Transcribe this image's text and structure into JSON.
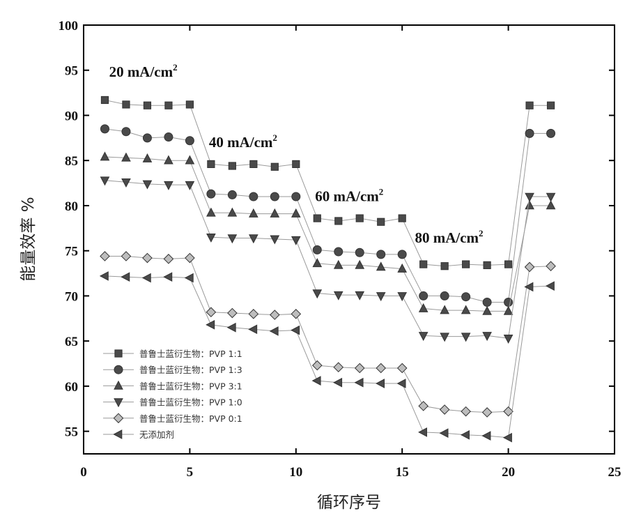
{
  "chart_data": {
    "type": "line",
    "xlabel": "循环序号",
    "ylabel": "能量效率 %",
    "xlim": [
      0,
      25
    ],
    "ylim": [
      52.5,
      100
    ],
    "xticks": [
      0,
      5,
      10,
      15,
      20,
      25
    ],
    "yticks": [
      55,
      60,
      65,
      70,
      75,
      80,
      85,
      90,
      95,
      100
    ],
    "legend_position": "bottom-left",
    "x": [
      1,
      2,
      3,
      4,
      5,
      6,
      7,
      8,
      9,
      10,
      11,
      12,
      13,
      14,
      15,
      16,
      17,
      18,
      19,
      20,
      21,
      22
    ],
    "series": [
      {
        "name": "普鲁士蓝衍生物：PVP 1:1",
        "marker": "square",
        "values": [
          91.7,
          91.2,
          91.1,
          91.1,
          91.2,
          84.6,
          84.4,
          84.6,
          84.3,
          84.6,
          78.6,
          78.3,
          78.6,
          78.2,
          78.6,
          73.5,
          73.3,
          73.5,
          73.4,
          73.5,
          91.1,
          91.1
        ]
      },
      {
        "name": "普鲁士蓝衍生物：PVP 1:3",
        "marker": "circle",
        "values": [
          88.5,
          88.2,
          87.5,
          87.6,
          87.2,
          81.3,
          81.2,
          81.0,
          81.0,
          81.0,
          75.1,
          74.9,
          74.8,
          74.6,
          74.6,
          70.0,
          70.0,
          69.9,
          69.3,
          69.3,
          88.0,
          88.0
        ]
      },
      {
        "name": "普鲁士蓝衍生物：PVP 3:1",
        "marker": "triangle-up",
        "values": [
          85.4,
          85.3,
          85.2,
          85.0,
          85.0,
          79.2,
          79.2,
          79.1,
          79.1,
          79.1,
          73.6,
          73.4,
          73.4,
          73.2,
          73.0,
          68.6,
          68.4,
          68.4,
          68.3,
          68.3,
          80.0,
          80.0
        ]
      },
      {
        "name": "普鲁士蓝衍生物：PVP 1:0",
        "marker": "triangle-down",
        "values": [
          82.8,
          82.6,
          82.4,
          82.3,
          82.3,
          76.5,
          76.4,
          76.4,
          76.3,
          76.2,
          70.3,
          70.1,
          70.1,
          70.0,
          70.0,
          65.6,
          65.5,
          65.5,
          65.6,
          65.3,
          81.0,
          81.0
        ]
      },
      {
        "name": "普鲁士蓝衍生物：PVP 0:1",
        "marker": "diamond",
        "values": [
          74.4,
          74.4,
          74.2,
          74.1,
          74.2,
          68.2,
          68.1,
          68.0,
          67.9,
          68.0,
          62.3,
          62.1,
          62.0,
          62.0,
          62.0,
          57.8,
          57.4,
          57.2,
          57.1,
          57.2,
          73.2,
          73.3
        ]
      },
      {
        "name": "无添加剂",
        "marker": "triangle-left",
        "values": [
          72.2,
          72.1,
          72.0,
          72.1,
          72.0,
          66.8,
          66.5,
          66.3,
          66.1,
          66.2,
          60.6,
          60.4,
          60.4,
          60.3,
          60.3,
          54.9,
          54.8,
          54.6,
          54.5,
          54.3,
          71.0,
          71.1
        ]
      }
    ],
    "annotations": [
      {
        "text": "20 mA/cm",
        "sup": "2",
        "x": 1.2,
        "y": 94.3
      },
      {
        "text": "40 mA/cm",
        "sup": "2",
        "x": 5.9,
        "y": 86.5
      },
      {
        "text": "60 mA/cm",
        "sup": "2",
        "x": 10.9,
        "y": 80.5
      },
      {
        "text": "80 mA/cm",
        "sup": "2",
        "x": 15.6,
        "y": 75.9
      }
    ],
    "colors": {
      "line": "#9a9a9a",
      "marker_fill": "#4a4a4a",
      "diamond_fill": "#bdbdbd",
      "marker_edge": "#333333"
    }
  }
}
